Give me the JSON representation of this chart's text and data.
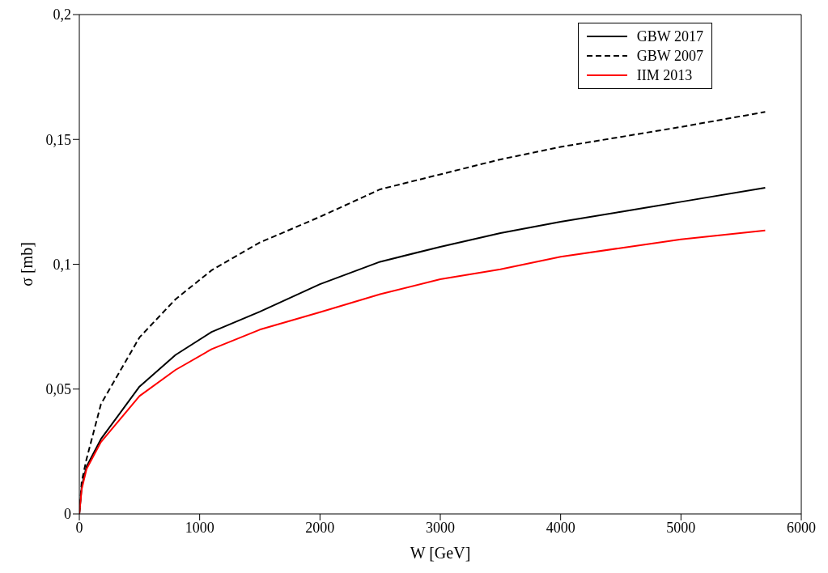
{
  "chart_data": {
    "type": "line",
    "xlabel": "W [GeV]",
    "ylabel": "σ [mb]",
    "xlim": [
      0,
      6000
    ],
    "xticks": [
      0,
      1000,
      2000,
      3000,
      4000,
      5000,
      6000
    ],
    "ylim": [
      0,
      0.2
    ],
    "yticks": [
      {
        "value": 0,
        "label": "0"
      },
      {
        "value": 0.05,
        "label": "0,05"
      },
      {
        "value": 0.1,
        "label": "0,1"
      },
      {
        "value": 0.15,
        "label": "0,15"
      },
      {
        "value": 0.2,
        "label": "0,2"
      }
    ],
    "grid": false,
    "legend": "top right",
    "marker": "none",
    "series": [
      {
        "name": "GBW 2017",
        "color": "#000000",
        "line_style": "solid",
        "x": [
          0,
          20,
          60,
          180,
          500,
          800,
          1100,
          1500,
          2000,
          2500,
          3000,
          3500,
          4000,
          4500,
          5000,
          5700
        ],
        "values": [
          0,
          0.011,
          0.019,
          0.03,
          0.051,
          0.0637,
          0.0729,
          0.081,
          0.092,
          0.101,
          0.107,
          0.1125,
          0.117,
          0.121,
          0.125,
          0.1306
        ]
      },
      {
        "name": "GBW 2007",
        "color": "#000000",
        "line_style": "dashed",
        "x": [
          0,
          20,
          60,
          180,
          500,
          800,
          1100,
          1500,
          2000,
          2500,
          3000,
          3500,
          4000,
          4500,
          5000,
          5700
        ],
        "values": [
          0,
          0.013,
          0.022,
          0.044,
          0.0707,
          0.086,
          0.0976,
          0.1087,
          0.119,
          0.13,
          0.136,
          0.142,
          0.147,
          0.151,
          0.155,
          0.161
        ]
      },
      {
        "name": "IIM 2013",
        "color": "#ff0000",
        "line_style": "solid",
        "x": [
          0,
          20,
          60,
          180,
          500,
          800,
          1100,
          1500,
          2000,
          2500,
          3000,
          3500,
          4000,
          4500,
          5000,
          5700
        ],
        "values": [
          0,
          0.01,
          0.018,
          0.0288,
          0.0472,
          0.0577,
          0.066,
          0.0738,
          0.0808,
          0.088,
          0.094,
          0.098,
          0.103,
          0.1065,
          0.11,
          0.1135
        ]
      }
    ]
  }
}
